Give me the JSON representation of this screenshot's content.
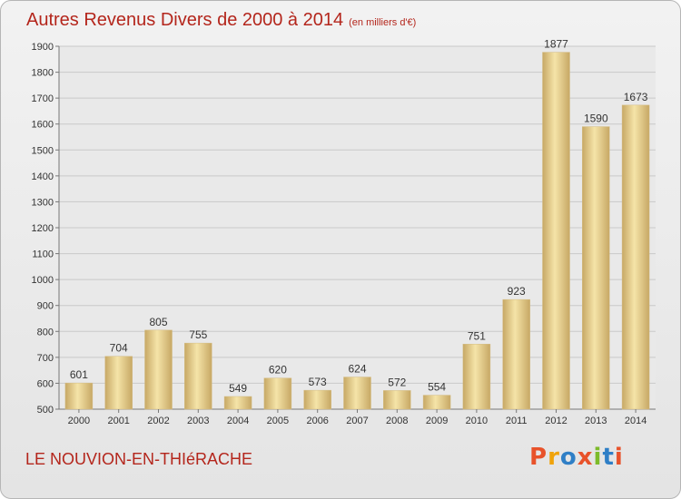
{
  "chart_data": {
    "type": "bar",
    "title": "Autres Revenus Divers de 2000 à 2014",
    "subtitle": "(en milliers d'€)",
    "categories": [
      "2000",
      "2001",
      "2002",
      "2003",
      "2004",
      "2005",
      "2006",
      "2007",
      "2008",
      "2009",
      "2010",
      "2011",
      "2012",
      "2013",
      "2014"
    ],
    "values": [
      601,
      704,
      805,
      755,
      549,
      620,
      573,
      624,
      572,
      554,
      751,
      923,
      1877,
      1590,
      1673
    ],
    "ylim": [
      500,
      1900
    ],
    "yticks": [
      500,
      600,
      700,
      800,
      900,
      1000,
      1100,
      1200,
      1300,
      1400,
      1500,
      1600,
      1700,
      1800,
      1900
    ],
    "grid": true,
    "bar_color_light": "#f5e4a8",
    "bar_color_dark": "#c7a865"
  },
  "footer": {
    "place": "LE NOUVION-EN-THIéRACHE",
    "logo": "Proxiti"
  },
  "colors": {
    "title": "#b4261c",
    "logo": [
      "#e8522a",
      "#f0a30a",
      "#2f7fc6",
      "#e8522a",
      "#7dbb2a",
      "#2f7fc6",
      "#e8522a"
    ]
  }
}
